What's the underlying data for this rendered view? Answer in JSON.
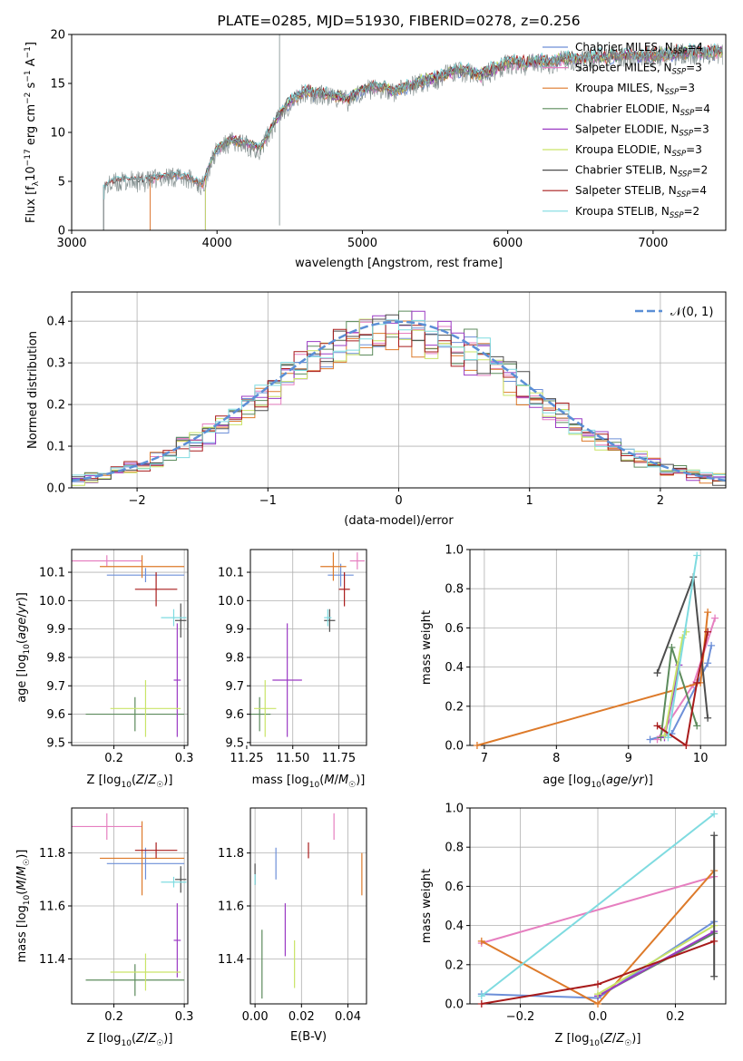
{
  "colors": {
    "Chabrier MILES": "#6d8fd8",
    "Salpeter MILES": "#e67fc0",
    "Kroupa MILES": "#dd7a2a",
    "Chabrier ELODIE": "#5c8b5c",
    "Salpeter ELODIE": "#9b3bc4",
    "Kroupa ELODIE": "#c9e467",
    "Chabrier STELIB": "#4d4d4d",
    "Salpeter STELIB": "#a81b1b",
    "Kroupa STELIB": "#7fdbe0"
  },
  "chart_data": [
    {
      "id": "spectrum",
      "type": "line",
      "title": "PLATE=0285, MJD=51930, FIBERID=0278, z=0.256",
      "xlabel": "wavelength [Angstrom, rest frame]",
      "ylabel": "Flux [f_λ10^-17 erg cm^-2 s^-1 A^-1]",
      "xlim": [
        3000,
        7500
      ],
      "ylim": [
        0,
        20
      ],
      "xticks": [
        3000,
        4000,
        5000,
        6000,
        7000
      ],
      "yticks": [
        0,
        5,
        10,
        15,
        20
      ],
      "grid": false,
      "legend_position": "top-right",
      "legend": [
        {
          "name": "Chabrier MILES, N_SSP=4",
          "model": "Chabrier MILES",
          "base": "Chabrier MILES, N",
          "sub": "SSP",
          "tail": "=4"
        },
        {
          "name": "Salpeter MILES, N_SSP=3",
          "model": "Salpeter MILES",
          "base": "Salpeter MILES, N",
          "sub": "SSP",
          "tail": "=3"
        },
        {
          "name": "Kroupa MILES, N_SSP=3",
          "model": "Kroupa MILES",
          "base": "Kroupa MILES, N",
          "sub": "SSP",
          "tail": "=3"
        },
        {
          "name": "Chabrier ELODIE, N_SSP=4",
          "model": "Chabrier ELODIE",
          "base": "Chabrier ELODIE, N",
          "sub": "SSP",
          "tail": "=4"
        },
        {
          "name": "Salpeter ELODIE, N_SSP=3",
          "model": "Salpeter ELODIE",
          "base": "Salpeter ELODIE, N",
          "sub": "SSP",
          "tail": "=3"
        },
        {
          "name": "Kroupa ELODIE, N_SSP=3",
          "model": "Kroupa ELODIE",
          "base": "Kroupa ELODIE, N",
          "sub": "SSP",
          "tail": "=3"
        },
        {
          "name": "Chabrier STELIB, N_SSP=2",
          "model": "Chabrier STELIB",
          "base": "Chabrier STELIB, N",
          "sub": "SSP",
          "tail": "=2"
        },
        {
          "name": "Salpeter STELIB, N_SSP=4",
          "model": "Salpeter STELIB",
          "base": "Salpeter STELIB, N",
          "sub": "SSP",
          "tail": "=4"
        },
        {
          "name": "Kroupa STELIB, N_SSP=2",
          "model": "Kroupa STELIB",
          "base": "Kroupa STELIB, N",
          "sub": "SSP",
          "tail": "=2"
        }
      ],
      "data_envelope": {
        "x": [
          3220,
          3250,
          3300,
          3400,
          3500,
          3600,
          3700,
          3800,
          3850,
          3900,
          3950,
          4000,
          4050,
          4100,
          4200,
          4300,
          4400,
          4500,
          4600,
          4700,
          4800,
          4900,
          5000,
          5100,
          5200,
          5300,
          5400,
          5500,
          5600,
          5700,
          5800,
          5900,
          6000,
          6100,
          6200,
          6300,
          6400,
          6500,
          6600,
          6700,
          6800,
          6900,
          7000,
          7100,
          7200,
          7300
        ],
        "y": [
          4.2,
          4.5,
          4.8,
          5.0,
          4.9,
          5.3,
          5.5,
          5.3,
          4.8,
          4.5,
          6.5,
          8.2,
          8.6,
          9.0,
          8.7,
          8.2,
          11.0,
          13.0,
          14.0,
          13.8,
          13.6,
          13.2,
          14.2,
          14.6,
          14.0,
          14.5,
          15.0,
          15.3,
          16.0,
          16.2,
          15.6,
          16.3,
          17.0,
          16.8,
          17.2,
          17.0,
          17.4,
          17.3,
          17.6,
          17.5,
          17.8,
          17.6,
          17.7,
          17.8,
          18.0,
          18.0
        ]
      },
      "model_starts": {
        "Chabrier MILES": 3540,
        "Salpeter MILES": 3540,
        "Kroupa MILES": 3540,
        "Chabrier ELODIE": 3920,
        "Salpeter ELODIE": 3920,
        "Kroupa ELODIE": 3920,
        "Chabrier STELIB": 3220,
        "Salpeter STELIB": 3220,
        "Kroupa STELIB": 3220
      }
    },
    {
      "id": "residuals",
      "type": "area",
      "xlabel": "(data-model)/error",
      "ylabel": "Normed distribution",
      "xlim": [
        -2.5,
        2.5
      ],
      "ylim": [
        0,
        0.47
      ],
      "xticks": [
        -2,
        -1,
        0,
        1,
        2
      ],
      "yticks": [
        0.0,
        0.1,
        0.2,
        0.3,
        0.4
      ],
      "grid": true,
      "legend_position": "top-right",
      "legend": [
        {
          "name": "N(0, 1)",
          "display": "𝒩(0, 1)",
          "color": "#5b8fd6",
          "style": "dashed"
        }
      ],
      "normal": {
        "mu": 0,
        "sigma": 1
      }
    },
    {
      "id": "age_vs_Z",
      "type": "scatter",
      "xlabel": "Z [log10(Z/Z☉)]",
      "ylabel": "age [log10(age/yr)]",
      "xlim": [
        0.14,
        0.305
      ],
      "ylim": [
        9.49,
        10.18
      ],
      "xticks": [
        0.2,
        0.3
      ],
      "yticks": [
        9.5,
        9.6,
        9.7,
        9.8,
        9.9,
        10.0,
        10.1
      ],
      "grid": true,
      "points": [
        {
          "model": "Chabrier MILES",
          "x": 0.245,
          "y": 10.09,
          "xerr": 0.055,
          "yerr": 0.025
        },
        {
          "model": "Salpeter MILES",
          "x": 0.19,
          "y": 10.14,
          "xerr": 0.05,
          "yerr": 0.02
        },
        {
          "model": "Kroupa MILES",
          "x": 0.24,
          "y": 10.12,
          "xerr": 0.06,
          "yerr": 0.04
        },
        {
          "model": "Chabrier ELODIE",
          "x": 0.23,
          "y": 9.6,
          "xerr": 0.07,
          "yerr": 0.06
        },
        {
          "model": "Salpeter ELODIE",
          "x": 0.29,
          "y": 9.72,
          "xerr": 0.005,
          "yerr": 0.2
        },
        {
          "model": "Kroupa ELODIE",
          "x": 0.245,
          "y": 9.62,
          "xerr": 0.05,
          "yerr": 0.1
        },
        {
          "model": "Chabrier STELIB",
          "x": 0.295,
          "y": 9.93,
          "xerr": 0.008,
          "yerr": 0.06
        },
        {
          "model": "Salpeter STELIB",
          "x": 0.26,
          "y": 10.04,
          "xerr": 0.03,
          "yerr": 0.06
        },
        {
          "model": "Kroupa STELIB",
          "x": 0.285,
          "y": 9.94,
          "xerr": 0.018,
          "yerr": 0.03
        }
      ]
    },
    {
      "id": "age_vs_mass",
      "type": "scatter",
      "xlabel": "mass [log10(M/M☉)]",
      "ylabel": "",
      "xlim": [
        11.27,
        11.9
      ],
      "ylim": [
        9.49,
        10.18
      ],
      "xticks": [
        11.25,
        11.5,
        11.75
      ],
      "yticks": [
        9.5,
        9.6,
        9.7,
        9.8,
        9.9,
        10.0,
        10.1
      ],
      "grid": true,
      "points": [
        {
          "model": "Chabrier MILES",
          "x": 11.76,
          "y": 10.09,
          "xerr": 0.07,
          "yerr": 0.04
        },
        {
          "model": "Salpeter MILES",
          "x": 11.85,
          "y": 10.14,
          "xerr": 0.04,
          "yerr": 0.03
        },
        {
          "model": "Kroupa MILES",
          "x": 11.72,
          "y": 10.12,
          "xerr": 0.07,
          "yerr": 0.05
        },
        {
          "model": "Chabrier ELODIE",
          "x": 11.32,
          "y": 9.6,
          "xerr": 0.06,
          "yerr": 0.06
        },
        {
          "model": "Salpeter ELODIE",
          "x": 11.47,
          "y": 9.72,
          "xerr": 0.08,
          "yerr": 0.2
        },
        {
          "model": "Kroupa ELODIE",
          "x": 11.35,
          "y": 9.62,
          "xerr": 0.06,
          "yerr": 0.1
        },
        {
          "model": "Chabrier STELIB",
          "x": 11.7,
          "y": 9.93,
          "xerr": 0.03,
          "yerr": 0.04
        },
        {
          "model": "Salpeter STELIB",
          "x": 11.78,
          "y": 10.04,
          "xerr": 0.03,
          "yerr": 0.06
        },
        {
          "model": "Kroupa STELIB",
          "x": 11.69,
          "y": 9.94,
          "xerr": 0.02,
          "yerr": 0.03
        }
      ]
    },
    {
      "id": "massweight_vs_age",
      "type": "line",
      "xlabel": "age [log10(age/yr)]",
      "ylabel": "mass weight",
      "xlim": [
        6.8,
        10.35
      ],
      "ylim": [
        0,
        1.0
      ],
      "xticks": [
        7,
        8,
        9,
        10
      ],
      "yticks": [
        0.0,
        0.2,
        0.4,
        0.6,
        0.8,
        1.0
      ],
      "grid": true,
      "series": [
        {
          "model": "Chabrier MILES",
          "x": [
            9.3,
            9.6,
            10.1,
            10.15
          ],
          "y": [
            0.03,
            0.06,
            0.42,
            0.51
          ]
        },
        {
          "model": "Salpeter MILES",
          "x": [
            9.4,
            9.9,
            10.2
          ],
          "y": [
            0.03,
            0.31,
            0.65
          ]
        },
        {
          "model": "Kroupa MILES",
          "x": [
            6.9,
            10.0,
            10.1
          ],
          "y": [
            0.0,
            0.32,
            0.68
          ]
        },
        {
          "model": "Chabrier ELODIE",
          "x": [
            9.45,
            9.6,
            9.95
          ],
          "y": [
            0.04,
            0.5,
            0.1
          ]
        },
        {
          "model": "Salpeter ELODIE",
          "x": [
            9.5,
            9.7
          ],
          "y": [
            0.04,
            0.41
          ]
        },
        {
          "model": "Kroupa ELODIE",
          "x": [
            9.5,
            9.75,
            9.8
          ],
          "y": [
            0.05,
            0.55,
            0.58
          ]
        },
        {
          "model": "Chabrier STELIB",
          "x": [
            9.4,
            9.9,
            10.1
          ],
          "y": [
            0.37,
            0.86,
            0.14
          ]
        },
        {
          "model": "Salpeter STELIB",
          "x": [
            9.4,
            9.8,
            9.95,
            10.1
          ],
          "y": [
            0.1,
            0.0,
            0.32,
            0.58
          ]
        },
        {
          "model": "Kroupa STELIB",
          "x": [
            9.55,
            9.95
          ],
          "y": [
            0.04,
            0.97
          ]
        }
      ]
    },
    {
      "id": "mass_vs_Z",
      "type": "scatter",
      "xlabel": "Z [log10(Z/Z☉)]",
      "ylabel": "mass [log10(M/M☉)]",
      "xlim": [
        0.14,
        0.305
      ],
      "ylim": [
        11.23,
        11.97
      ],
      "xticks": [
        0.2,
        0.3
      ],
      "yticks": [
        11.4,
        11.6,
        11.8
      ],
      "grid": true,
      "points": [
        {
          "model": "Chabrier MILES",
          "x": 0.245,
          "y": 11.76,
          "xerr": 0.055,
          "yerr": 0.06
        },
        {
          "model": "Salpeter MILES",
          "x": 0.19,
          "y": 11.9,
          "xerr": 0.05,
          "yerr": 0.05
        },
        {
          "model": "Kroupa MILES",
          "x": 0.24,
          "y": 11.78,
          "xerr": 0.06,
          "yerr": 0.14
        },
        {
          "model": "Chabrier ELODIE",
          "x": 0.23,
          "y": 11.32,
          "xerr": 0.07,
          "yerr": 0.06
        },
        {
          "model": "Salpeter ELODIE",
          "x": 0.29,
          "y": 11.47,
          "xerr": 0.005,
          "yerr": 0.14
        },
        {
          "model": "Kroupa ELODIE",
          "x": 0.245,
          "y": 11.35,
          "xerr": 0.05,
          "yerr": 0.07
        },
        {
          "model": "Chabrier STELIB",
          "x": 0.295,
          "y": 11.7,
          "xerr": 0.008,
          "yerr": 0.05
        },
        {
          "model": "Salpeter STELIB",
          "x": 0.26,
          "y": 11.81,
          "xerr": 0.03,
          "yerr": 0.03
        },
        {
          "model": "Kroupa STELIB",
          "x": 0.285,
          "y": 11.69,
          "xerr": 0.018,
          "yerr": 0.02
        }
      ]
    },
    {
      "id": "mass_vs_EBV",
      "type": "scatter",
      "xlabel": "E(B-V)",
      "ylabel": "",
      "xlim": [
        -0.002,
        0.048
      ],
      "ylim": [
        11.23,
        11.97
      ],
      "xticks": [
        0.0,
        0.02,
        0.04
      ],
      "yticks": [
        11.4,
        11.6,
        11.8
      ],
      "grid": true,
      "points": [
        {
          "model": "Chabrier MILES",
          "x": 0.009,
          "y": 11.76,
          "yerr": 0.06
        },
        {
          "model": "Salpeter MILES",
          "x": 0.034,
          "y": 11.9,
          "yerr": 0.05
        },
        {
          "model": "Kroupa MILES",
          "x": 0.046,
          "y": 11.72,
          "yerr": 0.08
        },
        {
          "model": "Chabrier ELODIE",
          "x": 0.003,
          "y": 11.38,
          "yerr": 0.13
        },
        {
          "model": "Salpeter ELODIE",
          "x": 0.013,
          "y": 11.51,
          "yerr": 0.1
        },
        {
          "model": "Kroupa ELODIE",
          "x": 0.017,
          "y": 11.38,
          "yerr": 0.09
        },
        {
          "model": "Chabrier STELIB",
          "x": 0.0,
          "y": 11.72,
          "yerr": 0.04
        },
        {
          "model": "Salpeter STELIB",
          "x": 0.023,
          "y": 11.81,
          "yerr": 0.03
        },
        {
          "model": "Kroupa STELIB",
          "x": 0.0,
          "y": 11.7,
          "yerr": 0.02
        }
      ]
    },
    {
      "id": "massweight_vs_Z",
      "type": "line",
      "xlabel": "Z [log10(Z/Z☉)]",
      "ylabel": "mass weight",
      "xlim": [
        -0.33,
        0.33
      ],
      "ylim": [
        0,
        1.0
      ],
      "xticks": [
        -0.2,
        0.0,
        0.2
      ],
      "yticks": [
        0.0,
        0.2,
        0.4,
        0.6,
        0.8,
        1.0
      ],
      "grid": true,
      "series": [
        {
          "model": "Chabrier MILES",
          "x": [
            -0.3,
            0.0,
            0.3
          ],
          "y": [
            0.05,
            0.03,
            0.42
          ]
        },
        {
          "model": "Salpeter MILES",
          "x": [
            -0.3,
            0.3
          ],
          "y": [
            0.31,
            0.65
          ]
        },
        {
          "model": "Kroupa MILES",
          "x": [
            -0.3,
            0.0,
            0.3
          ],
          "y": [
            0.32,
            0.0,
            0.68
          ]
        },
        {
          "model": "Chabrier ELODIE",
          "x": [
            0.0,
            0.3
          ],
          "y": [
            0.04,
            0.36
          ]
        },
        {
          "model": "Salpeter ELODIE",
          "x": [
            0.0,
            0.3
          ],
          "y": [
            0.04,
            0.37
          ]
        },
        {
          "model": "Kroupa ELODIE",
          "x": [
            0.0,
            0.3
          ],
          "y": [
            0.05,
            0.4
          ]
        },
        {
          "model": "Chabrier STELIB",
          "x": [
            0.3,
            0.3
          ],
          "y": [
            0.14,
            0.86
          ]
        },
        {
          "model": "Salpeter STELIB",
          "x": [
            -0.3,
            0.0,
            0.3
          ],
          "y": [
            0.0,
            0.1,
            0.32
          ]
        },
        {
          "model": "Kroupa STELIB",
          "x": [
            -0.3,
            0.3
          ],
          "y": [
            0.04,
            0.97
          ]
        }
      ]
    }
  ]
}
